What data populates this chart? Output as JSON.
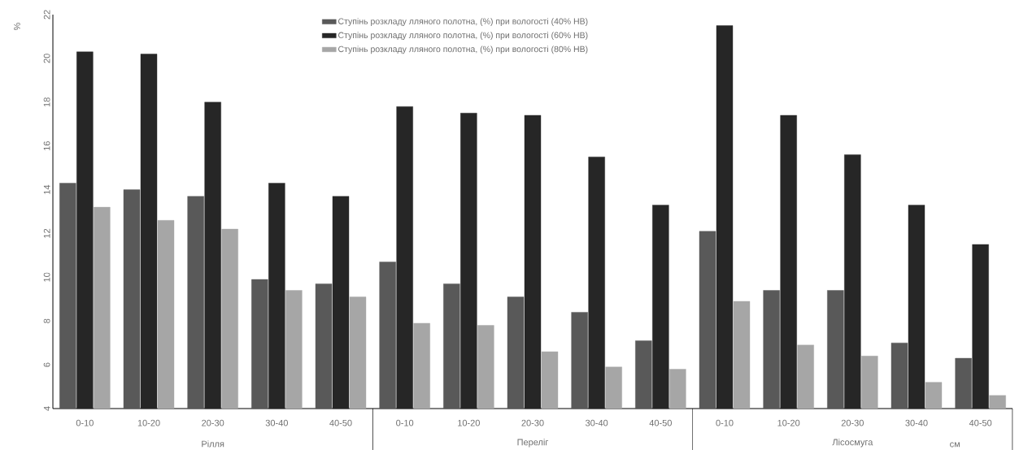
{
  "chart_data": {
    "type": "bar",
    "ylabel": "%",
    "categories": [
      "0-10",
      "10-20",
      "20-30",
      "30-40",
      "40-50",
      "0-10",
      "10-20",
      "20-30",
      "30-40",
      "40-50",
      "0-10",
      "10-20",
      "20-30",
      "30-40",
      "40-50"
    ],
    "series": [
      {
        "name": "Ступінь розкладу лляного полотна, (%) при вологості (40% НВ)",
        "color": "#595959",
        "values": [
          14.3,
          14.0,
          13.7,
          9.9,
          9.7,
          10.7,
          9.7,
          9.1,
          8.4,
          7.1,
          12.1,
          9.4,
          9.4,
          7.0,
          6.3
        ]
      },
      {
        "name": "Ступінь розкладу лляного полотна, (%) при вологості (60% НВ)",
        "color": "#262626",
        "values": [
          20.3,
          20.2,
          18.0,
          14.3,
          13.7,
          17.8,
          17.5,
          17.4,
          15.5,
          13.3,
          21.5,
          17.4,
          15.6,
          13.3,
          11.5
        ]
      },
      {
        "name": "Ступінь розкладу лляного полотна, (%) при вологості (80% НВ)",
        "color": "#a6a6a6",
        "values": [
          13.2,
          12.6,
          12.2,
          9.4,
          9.1,
          7.9,
          7.8,
          6.6,
          5.9,
          5.8,
          8.9,
          6.9,
          6.4,
          5.2,
          4.6
        ]
      }
    ],
    "ylim": [
      4,
      22
    ],
    "yticks": [
      4,
      6,
      8,
      10,
      12,
      14,
      16,
      18,
      20,
      22
    ],
    "legend": "top",
    "grid": false,
    "annotations": [
      "Рілля",
      "Переліг",
      "Лісосмуга",
      "см"
    ]
  }
}
